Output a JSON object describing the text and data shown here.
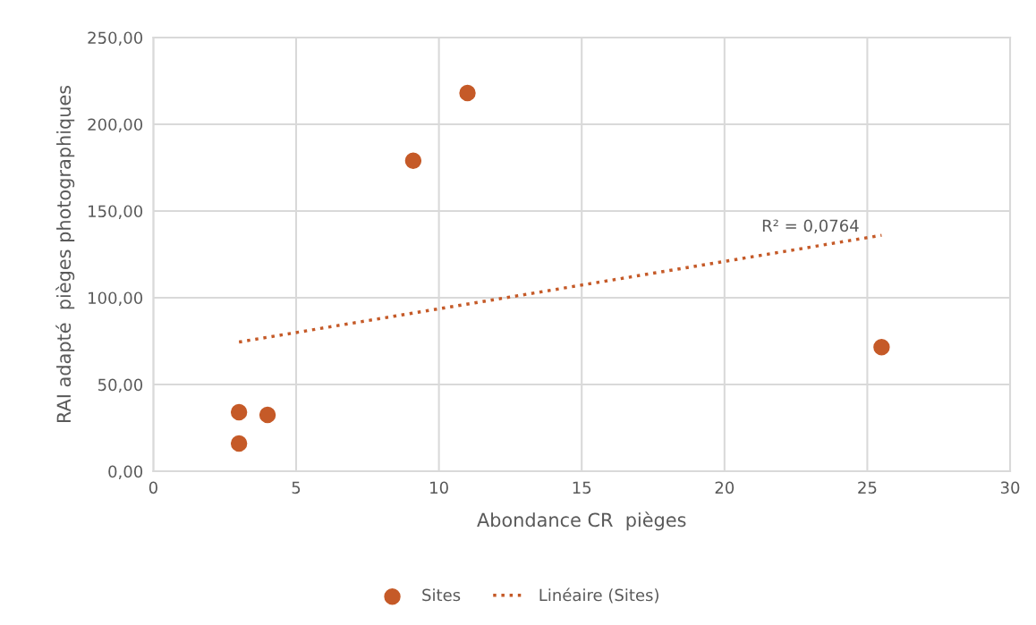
{
  "chart_data": {
    "type": "scatter",
    "xlabel": "Abondance CR  pièges",
    "ylabel": "RAI adapté  pièges photographiques",
    "xlim": [
      0,
      30
    ],
    "xticks": [
      0,
      5,
      10,
      15,
      20,
      25,
      30
    ],
    "ylim": [
      0,
      250
    ],
    "yticks": [
      {
        "value": 0,
        "label": "0,00"
      },
      {
        "value": 50,
        "label": "50,00"
      },
      {
        "value": 100,
        "label": "100,00"
      },
      {
        "value": 150,
        "label": "150,00"
      },
      {
        "value": 200,
        "label": "200,00"
      },
      {
        "value": 250,
        "label": "250,00"
      }
    ],
    "grid": true,
    "legend": "bottom",
    "series": [
      {
        "name": "Sites",
        "color": "#c55a28",
        "marker": "circle",
        "x": [
          3,
          3,
          4,
          9.1,
          11,
          25.5
        ],
        "values": [
          16,
          34,
          32.5,
          179,
          218,
          71.5
        ]
      },
      {
        "name": "Linéaire (Sites)",
        "type": "line",
        "color": "#c55a28",
        "marker": "none",
        "line_style": "dotted",
        "x": [
          3,
          25.5
        ],
        "values": [
          74.5,
          136
        ]
      }
    ],
    "annotations": [
      "R² = 0,0764"
    ]
  }
}
